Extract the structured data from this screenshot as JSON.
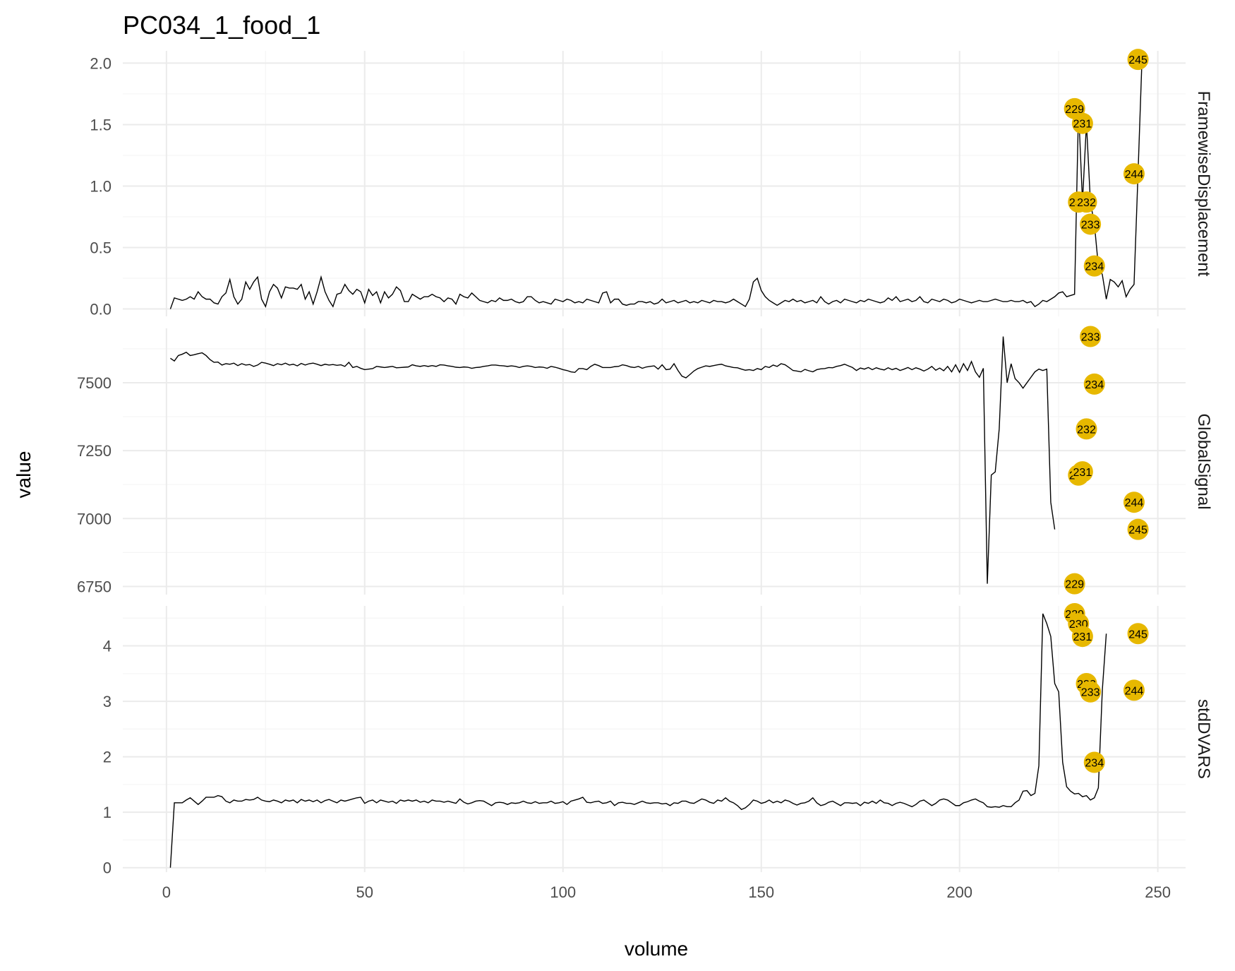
{
  "chart_data": {
    "type": "line",
    "title": "PC034_1_food_1",
    "xlabel": "volume",
    "ylabel": "value",
    "xlim": [
      -11,
      257
    ],
    "x_ticks": [
      0,
      50,
      100,
      150,
      200,
      250
    ],
    "x_tick_labels": [
      "0",
      "50",
      "100",
      "150",
      "200",
      "250"
    ],
    "highlight_color": "#E7B800",
    "grid": true,
    "facets": [
      {
        "name": "FramewiseDisplacement",
        "ylim": [
          -0.06,
          2.1
        ],
        "y_ticks": [
          0,
          0.5,
          1,
          1.5,
          2
        ],
        "y_tick_labels": [
          "0.0",
          "0.5",
          "1.0",
          "1.5",
          "2.0"
        ],
        "values": [
          0,
          0.09,
          0.08,
          0.07,
          0.08,
          0.1,
          0.08,
          0.14,
          0.1,
          0.08,
          0.08,
          0.05,
          0.04,
          0.1,
          0.13,
          0.24,
          0.1,
          0.04,
          0.08,
          0.22,
          0.16,
          0.22,
          0.26,
          0.08,
          0.02,
          0.14,
          0.2,
          0.17,
          0.09,
          0.18,
          0.17,
          0.17,
          0.16,
          0.2,
          0.08,
          0.14,
          0.04,
          0.14,
          0.26,
          0.14,
          0.07,
          0.02,
          0.12,
          0.13,
          0.2,
          0.15,
          0.12,
          0.16,
          0.14,
          0.05,
          0.16,
          0.11,
          0.14,
          0.05,
          0.14,
          0.09,
          0.12,
          0.18,
          0.15,
          0.06,
          0.06,
          0.12,
          0.1,
          0.08,
          0.1,
          0.1,
          0.12,
          0.1,
          0.09,
          0.06,
          0.09,
          0.08,
          0.04,
          0.12,
          0.1,
          0.09,
          0.13,
          0.1,
          0.07,
          0.06,
          0.05,
          0.07,
          0.06,
          0.09,
          0.07,
          0.07,
          0.08,
          0.06,
          0.05,
          0.06,
          0.1,
          0.1,
          0.07,
          0.05,
          0.06,
          0.05,
          0.04,
          0.08,
          0.07,
          0.06,
          0.08,
          0.07,
          0.05,
          0.06,
          0.05,
          0.08,
          0.07,
          0.06,
          0.05,
          0.13,
          0.14,
          0.05,
          0.08,
          0.08,
          0.04,
          0.03,
          0.04,
          0.04,
          0.06,
          0.06,
          0.05,
          0.06,
          0.04,
          0.05,
          0.08,
          0.05,
          0.06,
          0.07,
          0.05,
          0.06,
          0.07,
          0.05,
          0.06,
          0.05,
          0.07,
          0.06,
          0.05,
          0.07,
          0.06,
          0.06,
          0.05,
          0.06,
          0.08,
          0.06,
          0.04,
          0.02,
          0.08,
          0.22,
          0.25,
          0.15,
          0.1,
          0.07,
          0.05,
          0.03,
          0.05,
          0.07,
          0.06,
          0.08,
          0.06,
          0.07,
          0.05,
          0.06,
          0.07,
          0.05,
          0.1,
          0.06,
          0.04,
          0.06,
          0.07,
          0.05,
          0.08,
          0.07,
          0.06,
          0.05,
          0.07,
          0.06,
          0.08,
          0.07,
          0.06,
          0.05,
          0.06,
          0.09,
          0.07,
          0.1,
          0.06,
          0.07,
          0.08,
          0.06,
          0.07,
          0.1,
          0.06,
          0.05,
          0.08,
          0.07,
          0.06,
          0.08,
          0.07,
          0.05,
          0.06,
          0.08,
          0.07,
          0.06,
          0.05,
          0.06,
          0.07,
          0.06,
          0.06,
          0.07,
          0.08,
          0.07,
          0.06,
          0.06,
          0.07,
          0.06,
          0.06,
          0.07,
          0.05,
          0.06,
          0.02,
          0.04,
          0.07,
          0.06,
          0.08,
          0.1,
          0.13,
          0.14,
          0.1,
          0.11,
          0.12,
          1.63,
          0.87,
          1.51,
          0.87,
          0.69,
          0.35,
          0.28,
          0.08,
          0.24,
          0.22,
          0.18,
          0.23,
          0.1,
          0.16,
          0.2,
          1.1,
          2.03
        ],
        "flagged": [
          {
            "x": 229,
            "y": 1.63,
            "label": "229"
          },
          {
            "x": 230,
            "y": 0.87,
            "label": "230"
          },
          {
            "x": 231,
            "y": 1.51,
            "label": "231"
          },
          {
            "x": 232,
            "y": 0.87,
            "label": "232"
          },
          {
            "x": 233,
            "y": 0.69,
            "label": "233"
          },
          {
            "x": 234,
            "y": 0.35,
            "label": "234"
          },
          {
            "x": 244,
            "y": 1.1,
            "label": "244"
          },
          {
            "x": 245,
            "y": 2.03,
            "label": "245"
          }
        ]
      },
      {
        "name": "GlobalSignal",
        "ylim": [
          6720,
          7700
        ],
        "y_ticks": [
          6750,
          7000,
          7250,
          7500
        ],
        "y_tick_labels": [
          "6750",
          "7000",
          "7250",
          "7500"
        ],
        "values": [
          7590,
          7580,
          7600,
          7605,
          7612,
          7600,
          7603,
          7607,
          7610,
          7600,
          7585,
          7575,
          7576,
          7565,
          7570,
          7568,
          7572,
          7563,
          7570,
          7565,
          7567,
          7560,
          7565,
          7575,
          7572,
          7568,
          7563,
          7570,
          7566,
          7572,
          7565,
          7568,
          7562,
          7571,
          7565,
          7570,
          7572,
          7568,
          7563,
          7568,
          7565,
          7567,
          7564,
          7566,
          7560,
          7575,
          7556,
          7560,
          7553,
          7548,
          7550,
          7552,
          7560,
          7558,
          7556,
          7558,
          7560,
          7555,
          7556,
          7557,
          7558,
          7566,
          7562,
          7560,
          7563,
          7560,
          7563,
          7560,
          7566,
          7565,
          7562,
          7560,
          7557,
          7556,
          7558,
          7557,
          7553,
          7556,
          7557,
          7560,
          7562,
          7565,
          7565,
          7563,
          7562,
          7560,
          7562,
          7560,
          7556,
          7560,
          7562,
          7560,
          7556,
          7558,
          7557,
          7553,
          7560,
          7557,
          7553,
          7548,
          7545,
          7540,
          7538,
          7552,
          7552,
          7548,
          7560,
          7568,
          7563,
          7556,
          7556,
          7556,
          7559,
          7560,
          7566,
          7563,
          7558,
          7556,
          7560,
          7553,
          7558,
          7560,
          7562,
          7550,
          7566,
          7548,
          7550,
          7570,
          7545,
          7524,
          7518,
          7530,
          7543,
          7552,
          7557,
          7562,
          7560,
          7563,
          7566,
          7568,
          7562,
          7559,
          7556,
          7555,
          7550,
          7546,
          7548,
          7545,
          7552,
          7548,
          7560,
          7556,
          7565,
          7560,
          7570,
          7566,
          7556,
          7545,
          7543,
          7540,
          7549,
          7544,
          7540,
          7548,
          7551,
          7552,
          7556,
          7555,
          7560,
          7563,
          7568,
          7562,
          7556,
          7545,
          7554,
          7550,
          7556,
          7548,
          7555,
          7550,
          7547,
          7555,
          7548,
          7553,
          7545,
          7550,
          7556,
          7548,
          7555,
          7550,
          7543,
          7550,
          7560,
          7546,
          7554,
          7544,
          7560,
          7540,
          7566,
          7538,
          7570,
          7545,
          7578,
          7540,
          7520,
          7553,
          6760,
          7160,
          7172,
          7330,
          7670,
          7500,
          7570,
          7515,
          7500,
          7480,
          7500,
          7520,
          7540,
          7550,
          7545,
          7550,
          7060,
          6960
        ],
        "flagged": [
          {
            "x": 229,
            "y": 6760,
            "label": "229"
          },
          {
            "x": 230,
            "y": 7160,
            "label": "230"
          },
          {
            "x": 231,
            "y": 7172,
            "label": "231"
          },
          {
            "x": 232,
            "y": 7330,
            "label": "232"
          },
          {
            "x": 233,
            "y": 7670,
            "label": "233"
          },
          {
            "x": 234,
            "y": 7495,
            "label": "234"
          },
          {
            "x": 244,
            "y": 7060,
            "label": "244"
          },
          {
            "x": 245,
            "y": 6960,
            "label": "245"
          }
        ]
      },
      {
        "name": "stdDVARS",
        "ylim": [
          -0.08,
          4.72
        ],
        "y_ticks": [
          0,
          1,
          2,
          3,
          4
        ],
        "y_tick_labels": [
          "0",
          "1",
          "2",
          "3",
          "4"
        ],
        "values": [
          0,
          1.17,
          1.17,
          1.17,
          1.22,
          1.26,
          1.2,
          1.14,
          1.2,
          1.27,
          1.27,
          1.27,
          1.3,
          1.28,
          1.2,
          1.17,
          1.22,
          1.2,
          1.2,
          1.23,
          1.22,
          1.23,
          1.27,
          1.22,
          1.2,
          1.19,
          1.22,
          1.2,
          1.17,
          1.22,
          1.2,
          1.22,
          1.17,
          1.23,
          1.2,
          1.22,
          1.19,
          1.22,
          1.17,
          1.21,
          1.23,
          1.2,
          1.17,
          1.22,
          1.2,
          1.22,
          1.24,
          1.26,
          1.27,
          1.16,
          1.2,
          1.22,
          1.17,
          1.22,
          1.2,
          1.18,
          1.2,
          1.16,
          1.22,
          1.2,
          1.22,
          1.2,
          1.22,
          1.18,
          1.2,
          1.17,
          1.22,
          1.2,
          1.2,
          1.18,
          1.2,
          1.18,
          1.16,
          1.24,
          1.18,
          1.15,
          1.17,
          1.2,
          1.21,
          1.2,
          1.16,
          1.12,
          1.17,
          1.18,
          1.17,
          1.14,
          1.17,
          1.16,
          1.17,
          1.2,
          1.17,
          1.16,
          1.19,
          1.16,
          1.17,
          1.17,
          1.2,
          1.16,
          1.17,
          1.19,
          1.14,
          1.2,
          1.22,
          1.24,
          1.27,
          1.18,
          1.17,
          1.19,
          1.2,
          1.16,
          1.17,
          1.2,
          1.12,
          1.17,
          1.18,
          1.16,
          1.16,
          1.14,
          1.17,
          1.2,
          1.17,
          1.16,
          1.17,
          1.17,
          1.15,
          1.16,
          1.12,
          1.17,
          1.16,
          1.2,
          1.2,
          1.17,
          1.16,
          1.2,
          1.24,
          1.22,
          1.18,
          1.16,
          1.22,
          1.2,
          1.26,
          1.2,
          1.17,
          1.12,
          1.05,
          1.08,
          1.14,
          1.22,
          1.2,
          1.16,
          1.18,
          1.22,
          1.17,
          1.2,
          1.17,
          1.22,
          1.2,
          1.16,
          1.13,
          1.16,
          1.17,
          1.2,
          1.26,
          1.17,
          1.12,
          1.14,
          1.18,
          1.2,
          1.16,
          1.12,
          1.17,
          1.17,
          1.16,
          1.17,
          1.12,
          1.18,
          1.16,
          1.2,
          1.16,
          1.22,
          1.17,
          1.16,
          1.12,
          1.16,
          1.18,
          1.16,
          1.13,
          1.1,
          1.14,
          1.2,
          1.22,
          1.17,
          1.12,
          1.16,
          1.22,
          1.24,
          1.22,
          1.17,
          1.12,
          1.12,
          1.17,
          1.19,
          1.22,
          1.24,
          1.2,
          1.17,
          1.1,
          1.09,
          1.1,
          1.09,
          1.12,
          1.1,
          1.1,
          1.17,
          1.22,
          1.38,
          1.39,
          1.3,
          1.34,
          1.84,
          4.58,
          4.4,
          4.17,
          3.32,
          3.17,
          1.9,
          1.46,
          1.38,
          1.33,
          1.34,
          1.28,
          1.3,
          1.22,
          1.26,
          1.44,
          3.2,
          4.22
        ],
        "flagged": [
          {
            "x": 229,
            "y": 4.58,
            "label": "229"
          },
          {
            "x": 230,
            "y": 4.4,
            "label": "230"
          },
          {
            "x": 231,
            "y": 4.17,
            "label": "231"
          },
          {
            "x": 232,
            "y": 3.32,
            "label": "232"
          },
          {
            "x": 233,
            "y": 3.17,
            "label": "233"
          },
          {
            "x": 234,
            "y": 1.9,
            "label": "234"
          },
          {
            "x": 244,
            "y": 3.2,
            "label": "244"
          },
          {
            "x": 245,
            "y": 4.22,
            "label": "245"
          }
        ]
      }
    ]
  }
}
